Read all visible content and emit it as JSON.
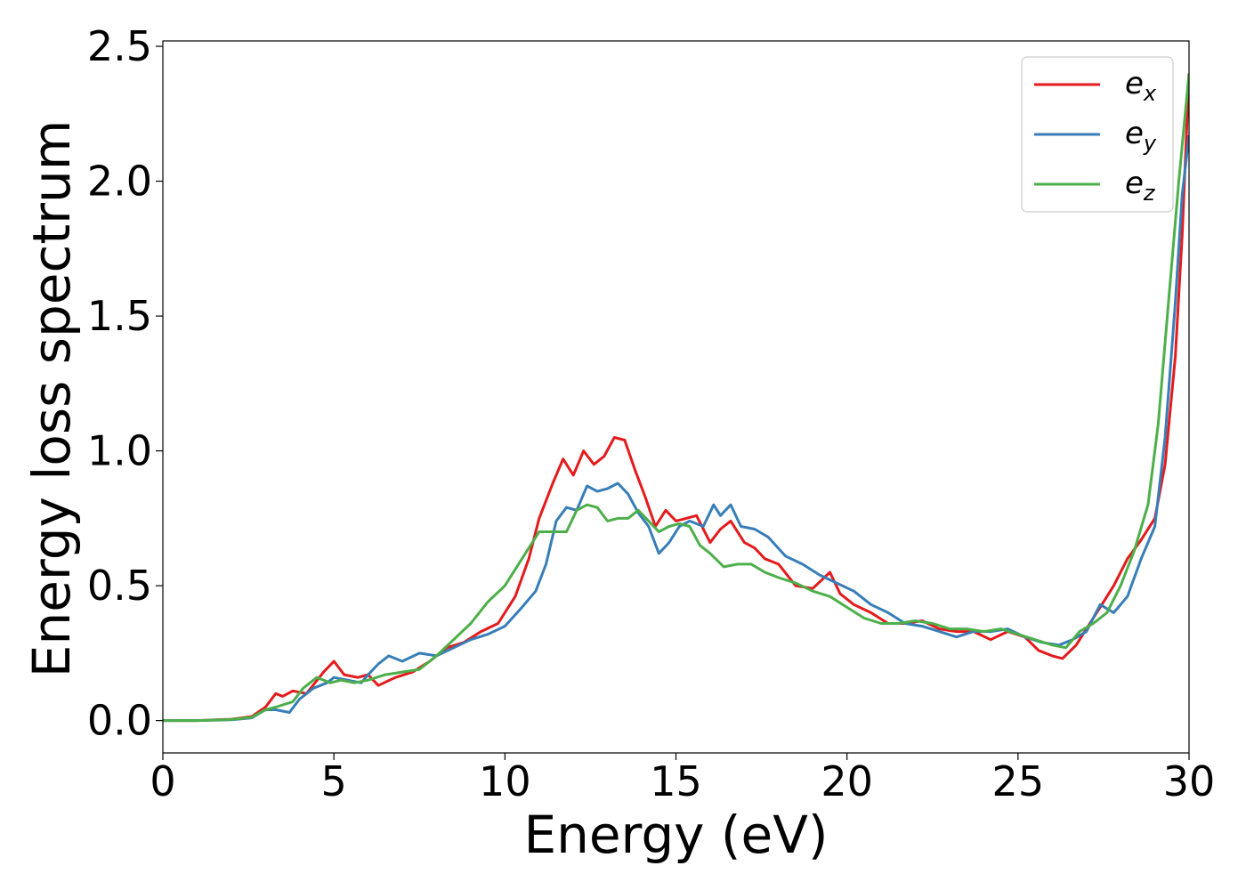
{
  "chart_data": {
    "type": "line",
    "xlabel": "Energy (eV)",
    "ylabel": "Energy loss spectrum",
    "xlim": [
      0,
      30
    ],
    "ylim": [
      -0.12,
      2.52
    ],
    "xticks": [
      0,
      5,
      10,
      15,
      20,
      25,
      30
    ],
    "xtick_labels": [
      "0",
      "5",
      "10",
      "15",
      "20",
      "25",
      "30"
    ],
    "yticks": [
      0.0,
      0.5,
      1.0,
      1.5,
      2.0,
      2.5
    ],
    "ytick_labels": [
      "0.0",
      "0.5",
      "1.0",
      "1.5",
      "2.0",
      "2.5"
    ],
    "grid": false,
    "legend_position": "top-right",
    "series": [
      {
        "name": "e",
        "subscript": "x",
        "color": "#e41a1c",
        "x": [
          0,
          1,
          2,
          2.6,
          3.0,
          3.3,
          3.5,
          3.8,
          4.2,
          4.7,
          5.0,
          5.3,
          5.7,
          6.0,
          6.3,
          6.8,
          7.3,
          7.8,
          8.3,
          8.8,
          9.3,
          9.8,
          10.3,
          10.7,
          11.0,
          11.4,
          11.7,
          12.0,
          12.3,
          12.6,
          12.9,
          13.2,
          13.5,
          13.8,
          14.1,
          14.4,
          14.7,
          15.0,
          15.3,
          15.6,
          16.0,
          16.3,
          16.6,
          17.0,
          17.3,
          17.6,
          18.0,
          18.5,
          19.0,
          19.5,
          19.8,
          20.2,
          20.7,
          21.2,
          21.7,
          22.2,
          22.7,
          23.2,
          23.7,
          24.2,
          24.7,
          25.2,
          25.6,
          26.0,
          26.3,
          26.7,
          27.0,
          27.4,
          27.8,
          28.2,
          28.6,
          29.0,
          29.3,
          29.6,
          29.8,
          30.0
        ],
        "y": [
          0.0,
          0.0,
          0.005,
          0.015,
          0.05,
          0.1,
          0.09,
          0.11,
          0.1,
          0.18,
          0.22,
          0.17,
          0.16,
          0.17,
          0.13,
          0.16,
          0.18,
          0.22,
          0.27,
          0.29,
          0.33,
          0.36,
          0.46,
          0.6,
          0.75,
          0.88,
          0.97,
          0.91,
          1.0,
          0.95,
          0.98,
          1.05,
          1.04,
          0.93,
          0.83,
          0.72,
          0.78,
          0.74,
          0.75,
          0.76,
          0.66,
          0.71,
          0.74,
          0.66,
          0.64,
          0.6,
          0.58,
          0.5,
          0.49,
          0.55,
          0.47,
          0.43,
          0.4,
          0.36,
          0.36,
          0.37,
          0.34,
          0.33,
          0.33,
          0.3,
          0.33,
          0.31,
          0.26,
          0.24,
          0.23,
          0.28,
          0.34,
          0.42,
          0.5,
          0.6,
          0.67,
          0.75,
          0.95,
          1.35,
          1.8,
          2.4
        ]
      },
      {
        "name": "e",
        "subscript": "y",
        "color": "#377eb8",
        "x": [
          0,
          1,
          2,
          2.6,
          3.0,
          3.3,
          3.7,
          4.0,
          4.4,
          4.8,
          5.0,
          5.4,
          5.8,
          6.0,
          6.3,
          6.6,
          7.0,
          7.5,
          8.0,
          8.5,
          9.0,
          9.5,
          10.0,
          10.5,
          10.9,
          11.2,
          11.5,
          11.8,
          12.1,
          12.4,
          12.7,
          13.0,
          13.3,
          13.6,
          13.9,
          14.2,
          14.5,
          14.8,
          15.1,
          15.4,
          15.8,
          16.1,
          16.3,
          16.6,
          16.9,
          17.3,
          17.7,
          18.2,
          18.7,
          19.2,
          19.7,
          20.2,
          20.7,
          21.2,
          21.7,
          22.2,
          22.7,
          23.2,
          23.7,
          24.2,
          24.7,
          25.2,
          25.7,
          26.2,
          26.6,
          27.0,
          27.4,
          27.8,
          28.2,
          28.6,
          29.0,
          29.3,
          29.6,
          29.8,
          30.0
        ],
        "y": [
          0.0,
          0.0,
          0.003,
          0.01,
          0.04,
          0.04,
          0.03,
          0.08,
          0.12,
          0.14,
          0.16,
          0.15,
          0.14,
          0.17,
          0.21,
          0.24,
          0.22,
          0.25,
          0.24,
          0.27,
          0.3,
          0.32,
          0.35,
          0.42,
          0.48,
          0.58,
          0.74,
          0.79,
          0.78,
          0.87,
          0.85,
          0.86,
          0.88,
          0.84,
          0.77,
          0.72,
          0.62,
          0.66,
          0.72,
          0.74,
          0.72,
          0.8,
          0.76,
          0.8,
          0.72,
          0.71,
          0.68,
          0.61,
          0.58,
          0.54,
          0.51,
          0.48,
          0.43,
          0.4,
          0.36,
          0.35,
          0.33,
          0.31,
          0.33,
          0.33,
          0.34,
          0.31,
          0.29,
          0.28,
          0.3,
          0.33,
          0.43,
          0.4,
          0.46,
          0.6,
          0.72,
          1.05,
          1.55,
          1.95,
          2.17
        ]
      },
      {
        "name": "e",
        "subscript": "z",
        "color": "#4daf4a",
        "x": [
          0,
          1,
          2,
          2.6,
          3.0,
          3.3,
          3.8,
          4.1,
          4.5,
          4.9,
          5.2,
          5.6,
          6.0,
          6.5,
          7.0,
          7.5,
          8.0,
          8.5,
          9.0,
          9.5,
          10.0,
          10.5,
          11.0,
          11.4,
          11.8,
          12.1,
          12.4,
          12.7,
          13.0,
          13.3,
          13.6,
          13.9,
          14.2,
          14.5,
          14.8,
          15.1,
          15.4,
          15.7,
          16.0,
          16.4,
          16.8,
          17.2,
          17.6,
          18.0,
          18.5,
          19.0,
          19.5,
          20.0,
          20.5,
          21.0,
          21.5,
          22.0,
          22.5,
          23.0,
          23.5,
          24.0,
          24.5,
          25.0,
          25.5,
          26.0,
          26.4,
          26.8,
          27.2,
          27.6,
          28.0,
          28.4,
          28.8,
          29.1,
          29.4,
          29.7,
          30.0
        ],
        "y": [
          0.0,
          0.0,
          0.004,
          0.012,
          0.04,
          0.05,
          0.07,
          0.12,
          0.16,
          0.14,
          0.15,
          0.14,
          0.15,
          0.17,
          0.18,
          0.19,
          0.24,
          0.3,
          0.36,
          0.44,
          0.5,
          0.6,
          0.7,
          0.7,
          0.7,
          0.78,
          0.8,
          0.79,
          0.74,
          0.75,
          0.75,
          0.78,
          0.74,
          0.7,
          0.72,
          0.73,
          0.72,
          0.65,
          0.62,
          0.57,
          0.58,
          0.58,
          0.55,
          0.53,
          0.51,
          0.48,
          0.46,
          0.42,
          0.38,
          0.36,
          0.36,
          0.37,
          0.36,
          0.34,
          0.34,
          0.33,
          0.34,
          0.32,
          0.3,
          0.28,
          0.27,
          0.33,
          0.36,
          0.4,
          0.5,
          0.63,
          0.8,
          1.1,
          1.55,
          2.0,
          2.4
        ]
      }
    ]
  }
}
